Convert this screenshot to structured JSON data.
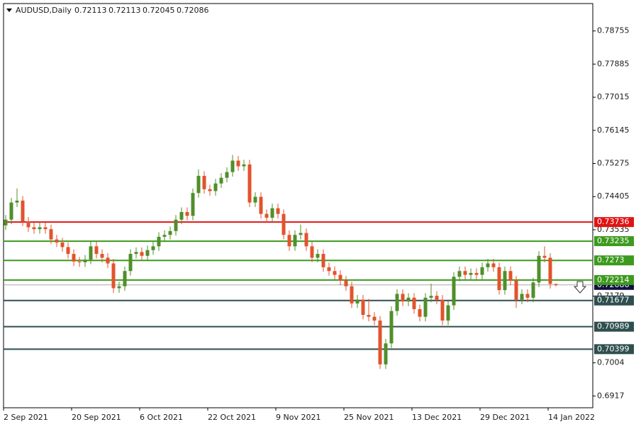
{
  "chart_data": {
    "type": "candlestick",
    "symbol": "AUDUSD,Daily",
    "up_color": "#4f8f2a",
    "down_color": "#e2532d",
    "ylim": [
      0.6886,
      0.79475
    ],
    "yticks": [
      0.78755,
      0.77885,
      0.77015,
      0.76145,
      0.75275,
      0.74405,
      0.73535,
      0.7179,
      0.7004,
      0.6917
    ],
    "levels": [
      {
        "value": 0.73736,
        "color": "#e01414"
      },
      {
        "value": 0.73235,
        "color": "#3d9a1e"
      },
      {
        "value": 0.7273,
        "color": "#3d9a1e"
      },
      {
        "value": 0.72214,
        "color": "#3d9a1e"
      },
      {
        "value": 0.71677,
        "color": "#2f4f4f"
      },
      {
        "value": 0.70989,
        "color": "#2f4f4f"
      },
      {
        "value": 0.70399,
        "color": "#2f4f4f"
      }
    ],
    "categories": [
      "2 Sep 2021",
      null,
      null,
      null,
      null,
      null,
      null,
      null,
      null,
      null,
      null,
      null,
      "20 Sep 2021",
      null,
      null,
      null,
      null,
      null,
      null,
      null,
      null,
      null,
      null,
      null,
      "6 Oct 2021",
      null,
      null,
      null,
      null,
      null,
      null,
      null,
      null,
      null,
      null,
      null,
      "22 Oct 2021",
      null,
      null,
      null,
      null,
      null,
      null,
      null,
      null,
      null,
      null,
      null,
      "9 Nov 2021",
      null,
      null,
      null,
      null,
      null,
      null,
      null,
      null,
      null,
      null,
      null,
      "25 Nov 2021",
      null,
      null,
      null,
      null,
      null,
      null,
      null,
      null,
      null,
      null,
      null,
      "13 Dec 2021",
      null,
      null,
      null,
      null,
      null,
      null,
      null,
      null,
      null,
      null,
      null,
      "29 Dec 2021",
      null,
      null,
      null,
      null,
      null,
      null,
      null,
      null,
      null,
      null,
      null,
      "14 Jan 2022",
      null
    ],
    "ohlc": [
      [
        0.7365,
        0.7392,
        0.7353,
        0.738
      ],
      [
        0.738,
        0.7437,
        0.7368,
        0.7425
      ],
      [
        0.7425,
        0.7462,
        0.7413,
        0.743
      ],
      [
        0.743,
        0.7442,
        0.7363,
        0.7375
      ],
      [
        0.7375,
        0.7387,
        0.7348,
        0.736
      ],
      [
        0.736,
        0.7372,
        0.7343,
        0.7355
      ],
      [
        0.7355,
        0.7372,
        0.7343,
        0.736
      ],
      [
        0.736,
        0.7372,
        0.7343,
        0.7355
      ],
      [
        0.7355,
        0.7367,
        0.7316,
        0.7328
      ],
      [
        0.7328,
        0.734,
        0.7308,
        0.732
      ],
      [
        0.732,
        0.7332,
        0.7296,
        0.7308
      ],
      [
        0.7308,
        0.732,
        0.7278,
        0.729
      ],
      [
        0.729,
        0.7302,
        0.7258,
        0.727
      ],
      [
        0.727,
        0.7282,
        0.7256,
        0.7268
      ],
      [
        0.7268,
        0.7287,
        0.7256,
        0.7275
      ],
      [
        0.7275,
        0.7322,
        0.7263,
        0.731
      ],
      [
        0.731,
        0.7322,
        0.7278,
        0.729
      ],
      [
        0.729,
        0.7302,
        0.7268,
        0.728
      ],
      [
        0.728,
        0.7292,
        0.7253,
        0.7265
      ],
      [
        0.7265,
        0.7277,
        0.7188,
        0.72
      ],
      [
        0.72,
        0.7217,
        0.7188,
        0.7205
      ],
      [
        0.7205,
        0.7257,
        0.7193,
        0.7245
      ],
      [
        0.7245,
        0.7302,
        0.7233,
        0.729
      ],
      [
        0.729,
        0.7307,
        0.7278,
        0.7295
      ],
      [
        0.7295,
        0.7307,
        0.7273,
        0.7285
      ],
      [
        0.7285,
        0.7312,
        0.7273,
        0.73
      ],
      [
        0.73,
        0.7322,
        0.7288,
        0.731
      ],
      [
        0.731,
        0.7347,
        0.7298,
        0.7335
      ],
      [
        0.7335,
        0.7352,
        0.7323,
        0.734
      ],
      [
        0.734,
        0.7362,
        0.7328,
        0.735
      ],
      [
        0.735,
        0.7392,
        0.7338,
        0.738
      ],
      [
        0.738,
        0.7412,
        0.7368,
        0.74
      ],
      [
        0.74,
        0.7412,
        0.7378,
        0.739
      ],
      [
        0.739,
        0.7462,
        0.7378,
        0.745
      ],
      [
        0.745,
        0.7512,
        0.7438,
        0.7495
      ],
      [
        0.7495,
        0.7507,
        0.7448,
        0.746
      ],
      [
        0.746,
        0.7472,
        0.7443,
        0.7455
      ],
      [
        0.7455,
        0.7487,
        0.7443,
        0.7475
      ],
      [
        0.7475,
        0.7502,
        0.7463,
        0.749
      ],
      [
        0.749,
        0.7517,
        0.7478,
        0.7505
      ],
      [
        0.7505,
        0.755,
        0.7493,
        0.7535
      ],
      [
        0.7535,
        0.7547,
        0.7508,
        0.752
      ],
      [
        0.752,
        0.7537,
        0.7508,
        0.7525
      ],
      [
        0.7525,
        0.7537,
        0.7413,
        0.7425
      ],
      [
        0.7425,
        0.7452,
        0.7413,
        0.744
      ],
      [
        0.744,
        0.7452,
        0.7383,
        0.7395
      ],
      [
        0.7395,
        0.7407,
        0.7373,
        0.7385
      ],
      [
        0.7385,
        0.7422,
        0.7373,
        0.741
      ],
      [
        0.741,
        0.7422,
        0.7383,
        0.7395
      ],
      [
        0.7395,
        0.7407,
        0.7328,
        0.734
      ],
      [
        0.734,
        0.7352,
        0.7298,
        0.731
      ],
      [
        0.731,
        0.7352,
        0.7298,
        0.734
      ],
      [
        0.734,
        0.7367,
        0.7328,
        0.7345
      ],
      [
        0.7345,
        0.7357,
        0.7298,
        0.731
      ],
      [
        0.731,
        0.7322,
        0.7268,
        0.728
      ],
      [
        0.728,
        0.7302,
        0.7268,
        0.729
      ],
      [
        0.729,
        0.7302,
        0.7243,
        0.7255
      ],
      [
        0.7255,
        0.7267,
        0.7233,
        0.7245
      ],
      [
        0.7245,
        0.7257,
        0.7223,
        0.7235
      ],
      [
        0.7235,
        0.7247,
        0.7208,
        0.722
      ],
      [
        0.722,
        0.7232,
        0.7193,
        0.7205
      ],
      [
        0.7205,
        0.7217,
        0.7148,
        0.716
      ],
      [
        0.716,
        0.7182,
        0.7148,
        0.717
      ],
      [
        0.717,
        0.7182,
        0.7118,
        0.713
      ],
      [
        0.713,
        0.7172,
        0.7113,
        0.7125
      ],
      [
        0.7125,
        0.7137,
        0.7103,
        0.7115
      ],
      [
        0.7115,
        0.7127,
        0.6988,
        0.7
      ],
      [
        0.7,
        0.7067,
        0.6988,
        0.7055
      ],
      [
        0.7055,
        0.7152,
        0.7043,
        0.714
      ],
      [
        0.714,
        0.7197,
        0.7128,
        0.7185
      ],
      [
        0.7185,
        0.7197,
        0.7153,
        0.7165
      ],
      [
        0.7165,
        0.7187,
        0.7153,
        0.7175
      ],
      [
        0.7175,
        0.7187,
        0.7133,
        0.7145
      ],
      [
        0.7145,
        0.7157,
        0.7113,
        0.7125
      ],
      [
        0.7125,
        0.7187,
        0.7113,
        0.7175
      ],
      [
        0.7175,
        0.7212,
        0.7163,
        0.718
      ],
      [
        0.718,
        0.7192,
        0.7158,
        0.717
      ],
      [
        0.717,
        0.7182,
        0.7103,
        0.7115
      ],
      [
        0.7115,
        0.7167,
        0.7103,
        0.7155
      ],
      [
        0.7155,
        0.7242,
        0.7143,
        0.723
      ],
      [
        0.723,
        0.7257,
        0.7218,
        0.7245
      ],
      [
        0.7245,
        0.7257,
        0.7223,
        0.7235
      ],
      [
        0.7235,
        0.7252,
        0.7223,
        0.724
      ],
      [
        0.724,
        0.7252,
        0.7223,
        0.7235
      ],
      [
        0.7235,
        0.7267,
        0.7223,
        0.7255
      ],
      [
        0.7255,
        0.7277,
        0.7243,
        0.7265
      ],
      [
        0.7265,
        0.7277,
        0.7243,
        0.7255
      ],
      [
        0.7255,
        0.7267,
        0.7183,
        0.7195
      ],
      [
        0.7195,
        0.7257,
        0.7183,
        0.7245
      ],
      [
        0.7245,
        0.7257,
        0.7208,
        0.722
      ],
      [
        0.722,
        0.7232,
        0.7148,
        0.717
      ],
      [
        0.717,
        0.7197,
        0.7158,
        0.7185
      ],
      [
        0.7185,
        0.7197,
        0.7163,
        0.7175
      ],
      [
        0.7175,
        0.7227,
        0.7163,
        0.7215
      ],
      [
        0.7215,
        0.7297,
        0.7203,
        0.7285
      ],
      [
        0.7285,
        0.731,
        0.7268,
        0.728
      ],
      [
        0.728,
        0.7292,
        0.7199,
        0.72113
      ],
      [
        0.72113,
        0.72113,
        0.72045,
        0.72086
      ]
    ]
  }
}
